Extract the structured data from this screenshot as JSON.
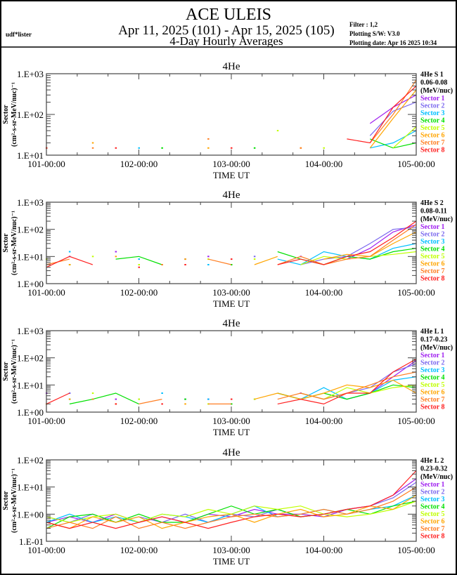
{
  "header": {
    "title": "ACE ULEIS",
    "date_range": "Apr 11, 2025 (101) - Apr 15, 2025 (105)",
    "subtitle": "4-Day Hourly Averages",
    "user": "udf*lister",
    "filter": "Filter : 1,2",
    "software": "Plotting S/W: V3.0",
    "plot_date": "Plotting date: Apr 16 2025 10:34"
  },
  "colors": {
    "Sector 1": "#a020f0",
    "Sector 2": "#7b68ee",
    "Sector 3": "#00bfff",
    "Sector 4": "#00e000",
    "Sector 5": "#c0ff00",
    "Sector 6": "#ffa500",
    "Sector 7": "#ff7f24",
    "Sector 8": "#ff2020"
  },
  "chart_data": [
    {
      "type": "line",
      "title": "4He",
      "xlabel": "TIME UT",
      "ylabel": "Sector",
      "ylabel_units": "(cm²-s-sr-MeV/nuc)⁻¹",
      "yscale": "log",
      "ylim": [
        10,
        1000
      ],
      "yticks": [
        "1.E+01",
        "1.E+02",
        "1.E+03"
      ],
      "xlim_hours": [
        0,
        96
      ],
      "xticks": [
        "101-00:00",
        "102-00:00",
        "103-00:00",
        "104-00:00",
        "105-00:00"
      ],
      "legend_title": [
        "4He S 1",
        "0.06-0.08",
        "(MeV/nuc)"
      ],
      "legend_placement": "right",
      "x_hours": [
        0,
        6,
        12,
        18,
        24,
        30,
        36,
        42,
        48,
        54,
        60,
        66,
        72,
        78,
        84,
        90,
        96
      ],
      "series": [
        {
          "name": "Sector 1",
          "values": [
            null,
            null,
            null,
            null,
            null,
            null,
            null,
            null,
            null,
            null,
            null,
            null,
            null,
            null,
            60,
            150,
            300
          ]
        },
        {
          "name": "Sector 2",
          "values": [
            null,
            null,
            null,
            null,
            null,
            null,
            null,
            null,
            null,
            null,
            null,
            null,
            null,
            null,
            30,
            120,
            200
          ]
        },
        {
          "name": "Sector 3",
          "values": [
            null,
            null,
            null,
            null,
            15,
            null,
            null,
            null,
            null,
            null,
            null,
            null,
            null,
            null,
            15,
            20,
            40
          ]
        },
        {
          "name": "Sector 4",
          "values": [
            null,
            null,
            null,
            null,
            null,
            15,
            null,
            null,
            null,
            15,
            null,
            null,
            null,
            null,
            25,
            15,
            20
          ]
        },
        {
          "name": "Sector 5",
          "values": [
            15,
            null,
            null,
            null,
            null,
            null,
            null,
            null,
            null,
            null,
            40,
            null,
            15,
            null,
            null,
            15,
            50
          ]
        },
        {
          "name": "Sector 6",
          "values": [
            null,
            null,
            20,
            null,
            null,
            null,
            null,
            15,
            null,
            null,
            null,
            15,
            null,
            null,
            15,
            80,
            400
          ]
        },
        {
          "name": "Sector 7",
          "values": [
            null,
            null,
            15,
            null,
            null,
            null,
            null,
            25,
            null,
            null,
            null,
            15,
            null,
            null,
            20,
            100,
            700
          ]
        },
        {
          "name": "Sector 8",
          "values": [
            15,
            null,
            null,
            15,
            null,
            null,
            null,
            null,
            15,
            null,
            null,
            null,
            null,
            25,
            20,
            150,
            500
          ]
        }
      ]
    },
    {
      "type": "line",
      "title": "4He",
      "xlabel": "TIME UT",
      "ylabel": "Sector",
      "ylabel_units": "(cm²-s-sr-MeV/nuc)⁻¹",
      "yscale": "log",
      "ylim": [
        1,
        1000
      ],
      "yticks": [
        "1.E+00",
        "1.E+01",
        "1.E+02",
        "1.E+03"
      ],
      "xlim_hours": [
        0,
        96
      ],
      "xticks": [
        "101-00:00",
        "102-00:00",
        "103-00:00",
        "104-00:00",
        "105-00:00"
      ],
      "legend_title": [
        "4He S 2",
        "0.08-0.11",
        "(MeV/nuc)"
      ],
      "legend_placement": "right",
      "x_hours": [
        0,
        6,
        12,
        18,
        24,
        30,
        36,
        42,
        48,
        54,
        60,
        66,
        72,
        78,
        84,
        90,
        96
      ],
      "series": [
        {
          "name": "Sector 1",
          "values": [
            null,
            null,
            null,
            15,
            null,
            null,
            null,
            10,
            null,
            null,
            null,
            10,
            null,
            8,
            20,
            80,
            150
          ]
        },
        {
          "name": "Sector 2",
          "values": [
            null,
            10,
            null,
            null,
            5,
            null,
            8,
            null,
            null,
            10,
            null,
            5,
            8,
            10,
            30,
            100,
            120
          ]
        },
        {
          "name": "Sector 3",
          "values": [
            null,
            15,
            null,
            null,
            8,
            null,
            null,
            5,
            null,
            null,
            8,
            5,
            15,
            10,
            8,
            20,
            30
          ]
        },
        {
          "name": "Sector 4",
          "values": [
            null,
            5,
            null,
            8,
            10,
            5,
            null,
            null,
            5,
            null,
            15,
            8,
            5,
            10,
            8,
            15,
            20
          ]
        },
        {
          "name": "Sector 5",
          "values": [
            8,
            null,
            10,
            null,
            5,
            null,
            null,
            8,
            null,
            8,
            null,
            5,
            10,
            8,
            10,
            12,
            15
          ]
        },
        {
          "name": "Sector 6",
          "values": [
            null,
            5,
            null,
            10,
            null,
            null,
            8,
            null,
            null,
            5,
            10,
            null,
            8,
            12,
            10,
            30,
            80
          ]
        },
        {
          "name": "Sector 7",
          "values": [
            5,
            8,
            null,
            null,
            null,
            5,
            null,
            8,
            5,
            null,
            5,
            10,
            5,
            8,
            10,
            40,
            150
          ]
        },
        {
          "name": "Sector 8",
          "values": [
            4,
            10,
            5,
            null,
            4,
            null,
            5,
            null,
            8,
            null,
            5,
            8,
            5,
            10,
            15,
            50,
            200
          ]
        }
      ]
    },
    {
      "type": "line",
      "title": "4He",
      "xlabel": "TIME UT",
      "ylabel": "Sector",
      "ylabel_units": "(cm²-s-sr-MeV/nuc)⁻¹",
      "yscale": "log",
      "ylim": [
        1,
        1000
      ],
      "yticks": [
        "1.E+00",
        "1.E+01",
        "1.E+02",
        "1.E+03"
      ],
      "xlim_hours": [
        0,
        96
      ],
      "xticks": [
        "101-00:00",
        "102-00:00",
        "103-00:00",
        "104-00:00",
        "105-00:00"
      ],
      "legend_title": [
        "4He L 1",
        "0.17-0.23",
        "(MeV/nuc)"
      ],
      "legend_placement": "right",
      "x_hours": [
        0,
        6,
        12,
        18,
        24,
        30,
        36,
        42,
        48,
        54,
        60,
        66,
        72,
        78,
        84,
        90,
        96
      ],
      "series": [
        {
          "name": "Sector 1",
          "values": [
            5,
            null,
            null,
            3,
            null,
            null,
            null,
            3,
            null,
            null,
            null,
            5,
            null,
            3,
            5,
            20,
            80
          ]
        },
        {
          "name": "Sector 2",
          "values": [
            null,
            5,
            null,
            null,
            3,
            null,
            3,
            null,
            null,
            3,
            null,
            5,
            3,
            5,
            8,
            30,
            60
          ]
        },
        {
          "name": "Sector 3",
          "values": [
            null,
            3,
            null,
            null,
            null,
            5,
            null,
            3,
            null,
            null,
            5,
            3,
            8,
            3,
            5,
            15,
            20
          ]
        },
        {
          "name": "Sector 4",
          "values": [
            null,
            2,
            3,
            5,
            2,
            null,
            3,
            null,
            2,
            null,
            5,
            3,
            5,
            3,
            5,
            10,
            8
          ]
        },
        {
          "name": "Sector 5",
          "values": [
            null,
            null,
            5,
            null,
            3,
            null,
            null,
            2,
            null,
            3,
            null,
            5,
            3,
            8,
            5,
            8,
            10
          ]
        },
        {
          "name": "Sector 6",
          "values": [
            null,
            3,
            null,
            2,
            null,
            null,
            2,
            null,
            null,
            3,
            5,
            3,
            5,
            10,
            8,
            15,
            5
          ]
        },
        {
          "name": "Sector 7",
          "values": [
            2,
            null,
            3,
            null,
            2,
            3,
            null,
            2,
            2,
            null,
            3,
            5,
            3,
            5,
            10,
            20,
            30
          ]
        },
        {
          "name": "Sector 8",
          "values": [
            2,
            5,
            null,
            2,
            null,
            2,
            null,
            null,
            3,
            null,
            2,
            3,
            2,
            5,
            5,
            30,
            90
          ]
        }
      ]
    },
    {
      "type": "line",
      "title": "4He",
      "xlabel": "TIME UT",
      "ylabel": "Sector",
      "ylabel_units": "(cm²-s-sr-MeV/nuc)⁻¹",
      "yscale": "log",
      "ylim": [
        0.1,
        100
      ],
      "yticks": [
        "1.E-01",
        "1.E+00",
        "1.E+01",
        "1.E+02"
      ],
      "xlim_hours": [
        0,
        96
      ],
      "xticks": [
        "101-00:00",
        "102-00:00",
        "103-00:00",
        "104-00:00",
        "105-00:00"
      ],
      "legend_title": [
        "4He L 2",
        "0.23-0.32",
        "(MeV/nuc)"
      ],
      "legend_placement": "right",
      "x_hours": [
        0,
        6,
        12,
        18,
        24,
        30,
        36,
        42,
        48,
        54,
        60,
        66,
        72,
        78,
        84,
        90,
        96
      ],
      "series": [
        {
          "name": "Sector 1",
          "values": [
            0.5,
            0.8,
            0.5,
            1,
            0.5,
            0.8,
            0.5,
            1,
            0.8,
            1.5,
            1,
            1,
            0.8,
            1.5,
            2,
            5,
            20
          ]
        },
        {
          "name": "Sector 2",
          "values": [
            0.8,
            0.5,
            1,
            0.5,
            0.8,
            0.5,
            1,
            0.5,
            1,
            0.8,
            1.5,
            0.8,
            1,
            1.5,
            2,
            4,
            15
          ]
        },
        {
          "name": "Sector 3",
          "values": [
            0.5,
            1,
            0.5,
            0.8,
            0.5,
            1,
            0.8,
            0.5,
            1,
            2,
            0.8,
            1,
            1.5,
            1,
            1.5,
            2,
            5
          ]
        },
        {
          "name": "Sector 4",
          "values": [
            0.3,
            0.8,
            1,
            0.5,
            1,
            0.5,
            0.5,
            1,
            2,
            1,
            1.5,
            0.8,
            1,
            1.5,
            1,
            2,
            3
          ]
        },
        {
          "name": "Sector 5",
          "values": [
            0.8,
            0.5,
            0.8,
            1,
            0.5,
            1,
            0.8,
            1.5,
            1,
            2,
            1.5,
            2,
            1,
            0.8,
            1,
            1.5,
            3
          ]
        },
        {
          "name": "Sector 6",
          "values": [
            0.5,
            0.3,
            0.8,
            0.5,
            0.8,
            0.3,
            0.5,
            0.8,
            1,
            0.5,
            1,
            1.5,
            0.8,
            1,
            2,
            1.5,
            5
          ]
        },
        {
          "name": "Sector 7",
          "values": [
            0.3,
            0.5,
            0.3,
            0.8,
            0.3,
            0.5,
            0.3,
            0.5,
            0.8,
            1,
            0.8,
            1,
            1.5,
            1,
            1.5,
            3,
            10
          ]
        },
        {
          "name": "Sector 8",
          "values": [
            0.5,
            0.3,
            0.5,
            0.3,
            0.5,
            0.8,
            0.5,
            0.3,
            0.5,
            0.8,
            1,
            0.8,
            1,
            1.5,
            2,
            5,
            40
          ]
        }
      ]
    }
  ]
}
